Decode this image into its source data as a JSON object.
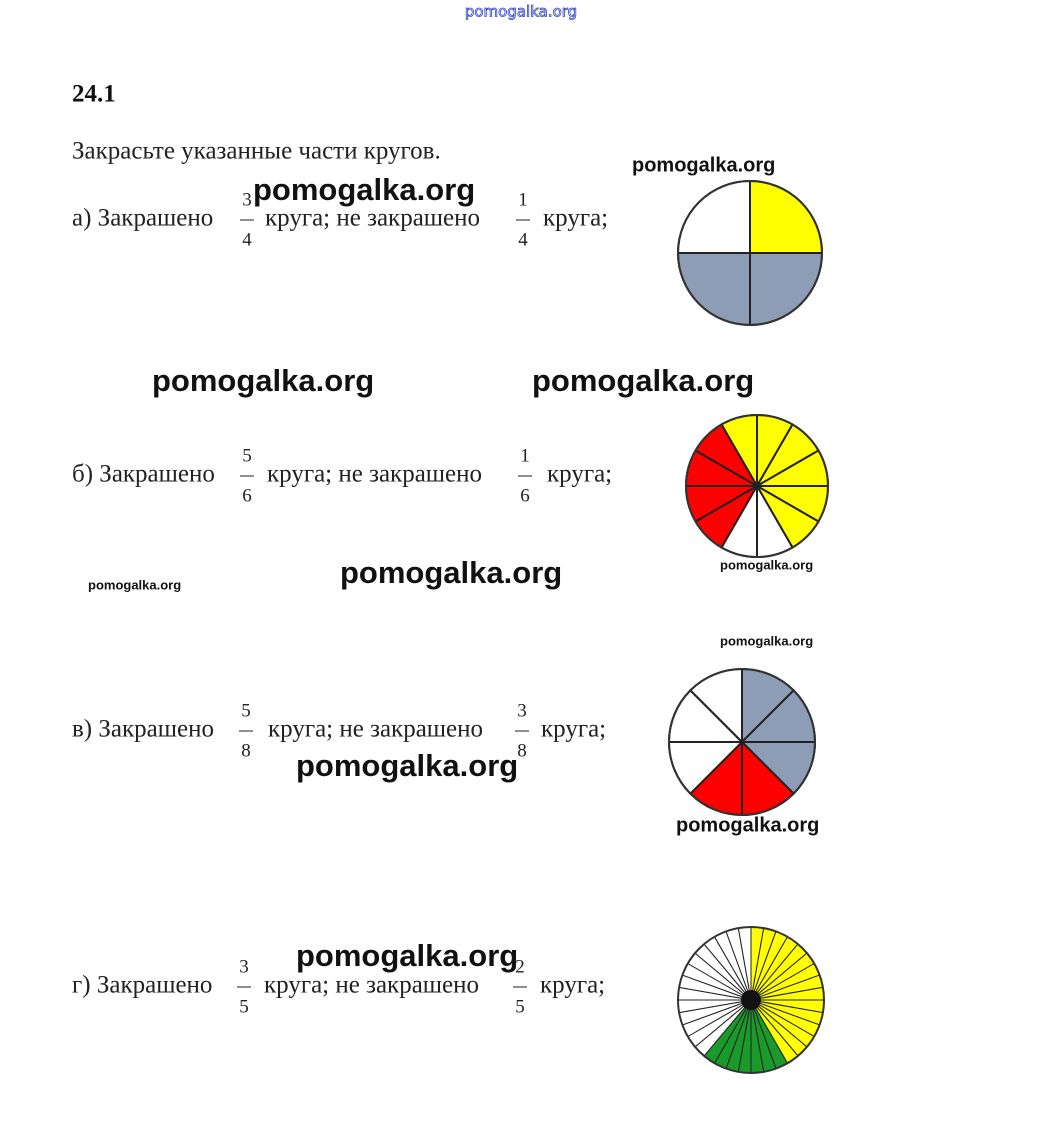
{
  "header": {
    "site": "pomogalka.org",
    "number": "24.1",
    "instruction": "Закрасьте указанные части кругов."
  },
  "items": [
    {
      "label": "а) Закрашено",
      "fraction1": {
        "num": "3",
        "den": "4"
      },
      "middle": "круга; не закрашено",
      "fraction2": {
        "num": "1",
        "den": "4"
      },
      "end": "круга;"
    },
    {
      "label": "б) Закрашено",
      "fraction1": {
        "num": "5",
        "den": "6"
      },
      "middle": "круга; не закрашено",
      "fraction2": {
        "num": "1",
        "den": "6"
      },
      "end": "круга;"
    },
    {
      "label": "в) Закрашено",
      "fraction1": {
        "num": "5",
        "den": "8"
      },
      "middle": "круга; не закрашено",
      "fraction2": {
        "num": "3",
        "den": "8"
      },
      "end": "круга;"
    },
    {
      "label": "г) Закрашено",
      "fraction1": {
        "num": "3",
        "den": "5"
      },
      "middle": "круга; не закрашено",
      "fraction2": {
        "num": "2",
        "den": "5"
      },
      "end": "круга;"
    }
  ],
  "watermarks": [
    "pomogalka.org",
    "pomogalka.org",
    "pomogalka.org",
    "pomogalka.org",
    "pomogalka.org",
    "pomogalka.org",
    "pomogalka.org",
    "pomogalka.org",
    "pomogalka.org",
    "pomogalka.org",
    "pomogalka.org"
  ]
}
